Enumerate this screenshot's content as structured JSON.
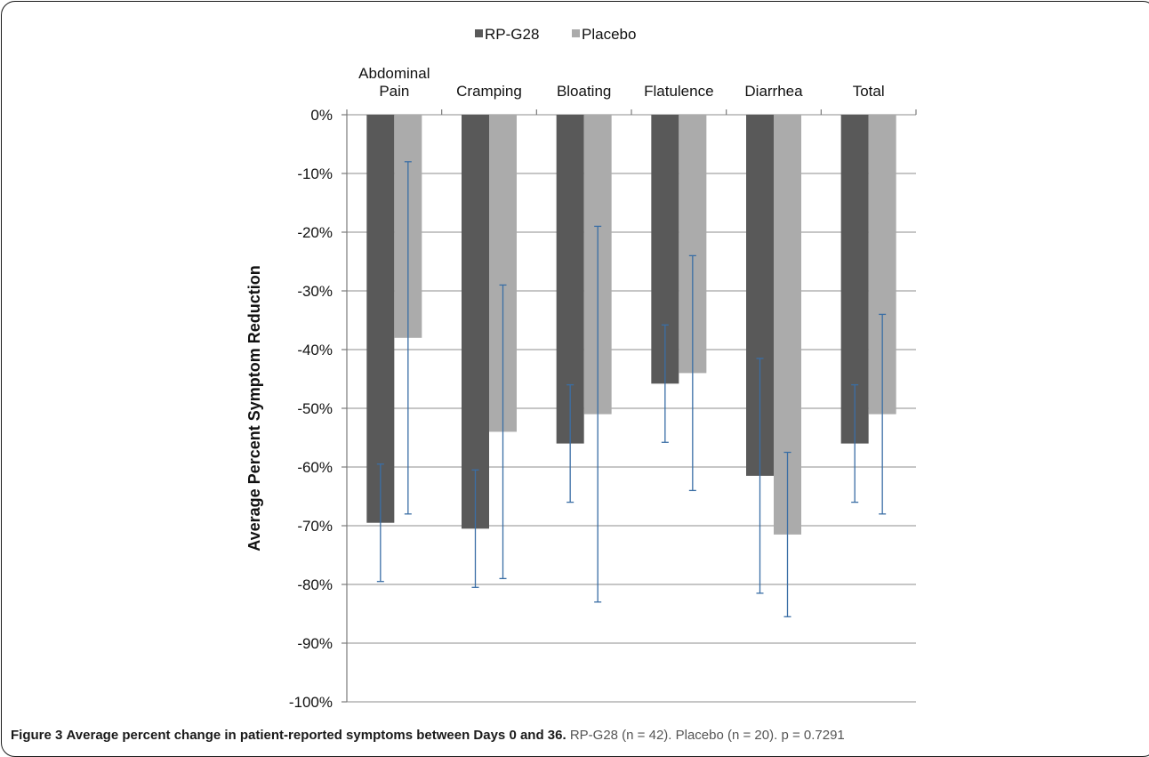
{
  "caption": {
    "figure_label": "Figure 3",
    "title": "Average percent change in patient-reported symptoms between Days 0 and 36.",
    "details": "RP-G28 (n = 42). Placebo (n = 20). p = 0.7291"
  },
  "colors": {
    "rp_g28": "#595959",
    "placebo": "#ababab",
    "error_bar": "#3a6ea5",
    "grid": "#8c8c8c"
  },
  "chart_data": {
    "type": "bar",
    "ylabel": "Average Percent Symptom Reduction",
    "xlabel": "",
    "ylim": [
      -100,
      0
    ],
    "y_ticks": [
      "0%",
      "-10%",
      "-20%",
      "-30%",
      "-40%",
      "-50%",
      "-60%",
      "-70%",
      "-80%",
      "-90%",
      "-100%"
    ],
    "y_tick_values": [
      0,
      -10,
      -20,
      -30,
      -40,
      -50,
      -60,
      -70,
      -80,
      -90,
      -100
    ],
    "categories": [
      [
        "Abdominal",
        "Pain"
      ],
      [
        "Cramping"
      ],
      [
        "Bloating"
      ],
      [
        "Flatulence"
      ],
      [
        "Diarrhea"
      ],
      [
        "Total"
      ]
    ],
    "legend_position": "top-center",
    "grid": true,
    "series": [
      {
        "name": "RP-G28",
        "values": [
          -69.5,
          -70.5,
          -56,
          -45.8,
          -61.5,
          -56
        ],
        "err_low": [
          -79.5,
          -80.5,
          -66,
          -55.8,
          -81.5,
          -66
        ],
        "err_high": [
          -59.5,
          -60.5,
          -46,
          -35.8,
          -41.5,
          -46
        ]
      },
      {
        "name": "Placebo",
        "values": [
          -38,
          -54,
          -51,
          -44,
          -71.5,
          -51
        ],
        "err_low": [
          -68,
          -79,
          -83,
          -64,
          -85.5,
          -68
        ],
        "err_high": [
          -8,
          -29,
          -19,
          -24,
          -57.5,
          -34
        ]
      }
    ]
  }
}
